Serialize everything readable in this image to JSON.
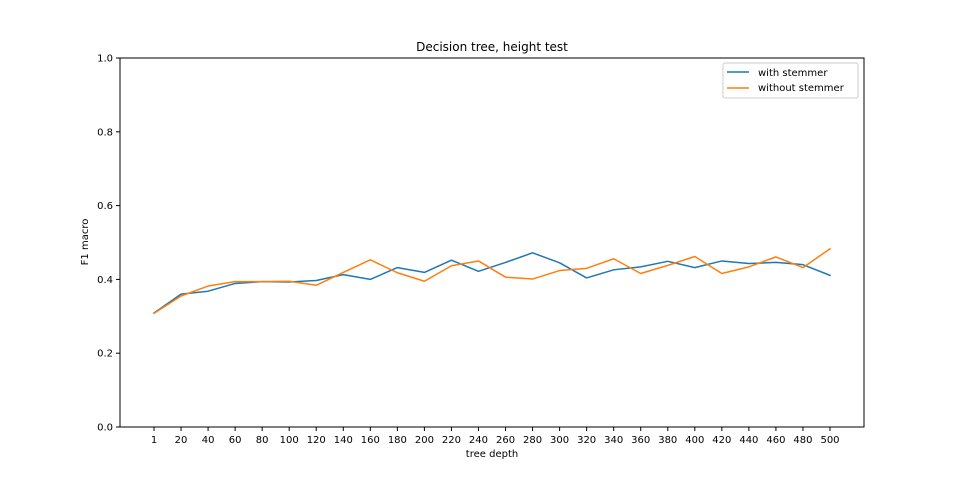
{
  "chart_data": {
    "type": "line",
    "title": "Decision tree, height test",
    "xlabel": "tree depth",
    "ylabel": "F1 macro",
    "ylim": [
      0.0,
      1.0
    ],
    "yticks": [
      "0.0",
      "0.2",
      "0.4",
      "0.6",
      "0.8",
      "1.0"
    ],
    "categories": [
      "1",
      "20",
      "40",
      "60",
      "80",
      "100",
      "120",
      "140",
      "160",
      "180",
      "200",
      "220",
      "240",
      "260",
      "280",
      "300",
      "320",
      "340",
      "360",
      "380",
      "400",
      "420",
      "440",
      "460",
      "480",
      "500"
    ],
    "grid": false,
    "legend_position": "top-right",
    "series": [
      {
        "name": "with stemmer",
        "color": "#1f77b4",
        "values": [
          0.309,
          0.36,
          0.368,
          0.389,
          0.394,
          0.393,
          0.397,
          0.413,
          0.4,
          0.432,
          0.419,
          0.452,
          0.422,
          0.446,
          0.472,
          0.445,
          0.404,
          0.426,
          0.434,
          0.449,
          0.432,
          0.45,
          0.443,
          0.446,
          0.44,
          0.411
        ]
      },
      {
        "name": "without stemmer",
        "color": "#ff7f0e",
        "values": [
          0.308,
          0.355,
          0.382,
          0.394,
          0.394,
          0.395,
          0.384,
          0.419,
          0.453,
          0.418,
          0.395,
          0.437,
          0.45,
          0.406,
          0.401,
          0.424,
          0.43,
          0.456,
          0.416,
          0.438,
          0.462,
          0.416,
          0.434,
          0.461,
          0.432,
          0.483
        ]
      }
    ]
  }
}
